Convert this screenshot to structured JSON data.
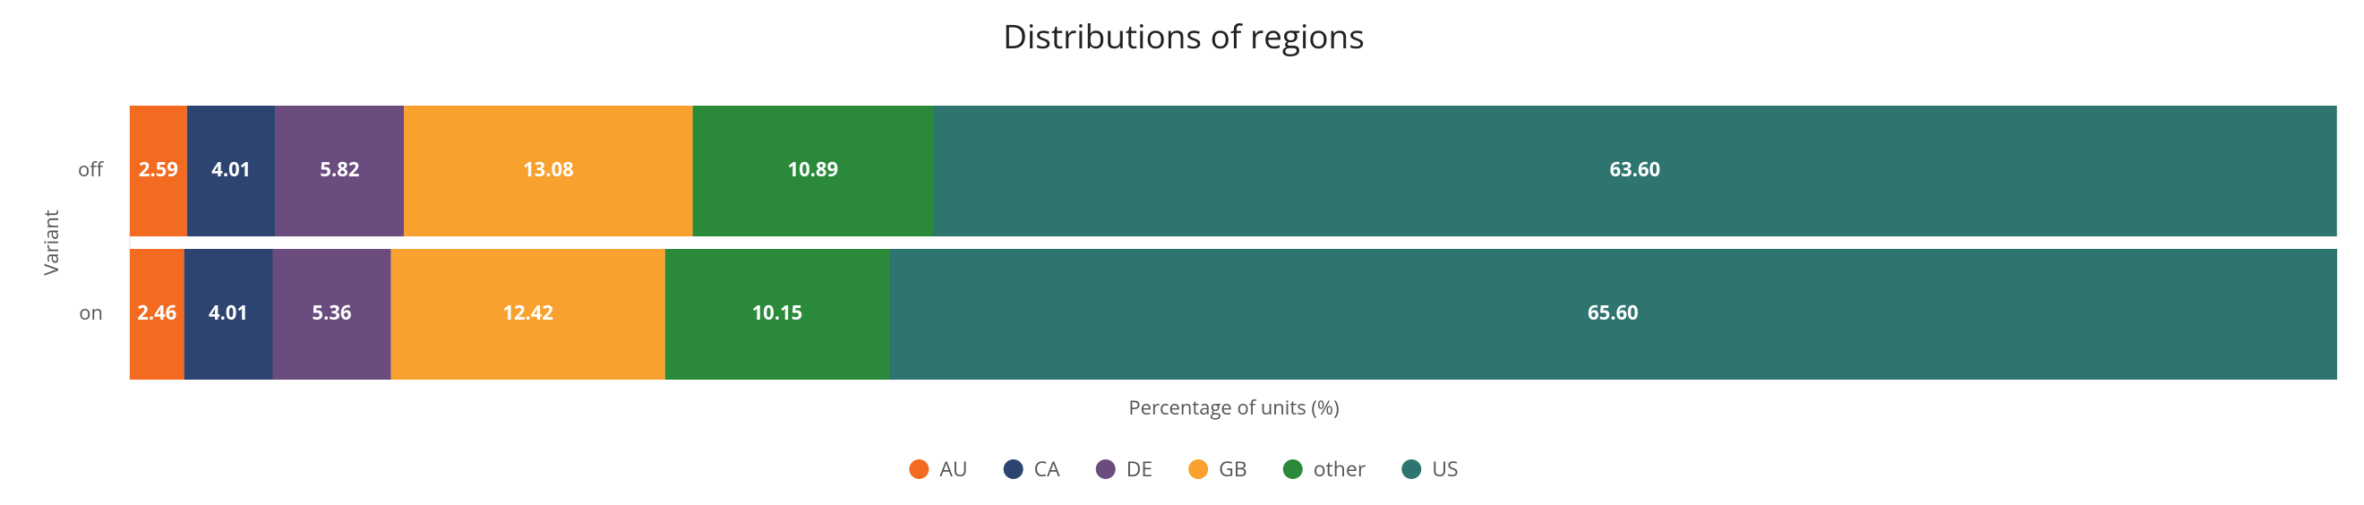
{
  "chart_data": {
    "type": "stacked-bar-horizontal",
    "title": "Distributions of regions",
    "x_label": "Percentage of units (%)",
    "y_label": "Variant",
    "categories": [
      "off",
      "on"
    ],
    "xlim": [
      0,
      100
    ],
    "legend": "bottom",
    "series": [
      {
        "name": "AU",
        "color": "#f26b21",
        "values": [
          2.59,
          2.46
        ],
        "value_labels": [
          "2.59",
          "2.46"
        ]
      },
      {
        "name": "CA",
        "color": "#2e4470",
        "values": [
          4.01,
          4.01
        ],
        "value_labels": [
          "4.01",
          "4.01"
        ]
      },
      {
        "name": "DE",
        "color": "#6a4c7e",
        "values": [
          5.82,
          5.36
        ],
        "value_labels": [
          "5.82",
          "5.36"
        ]
      },
      {
        "name": "GB",
        "color": "#f9a12e",
        "values": [
          13.08,
          12.42
        ],
        "value_labels": [
          "13.08",
          "12.42"
        ]
      },
      {
        "name": "other",
        "color": "#2a8a3a",
        "values": [
          10.89,
          10.15
        ],
        "value_labels": [
          "10.89",
          "10.15"
        ]
      },
      {
        "name": "US",
        "color": "#2e7570",
        "values": [
          63.6,
          65.6
        ],
        "value_labels": [
          "63.60",
          "65.60"
        ]
      }
    ]
  }
}
